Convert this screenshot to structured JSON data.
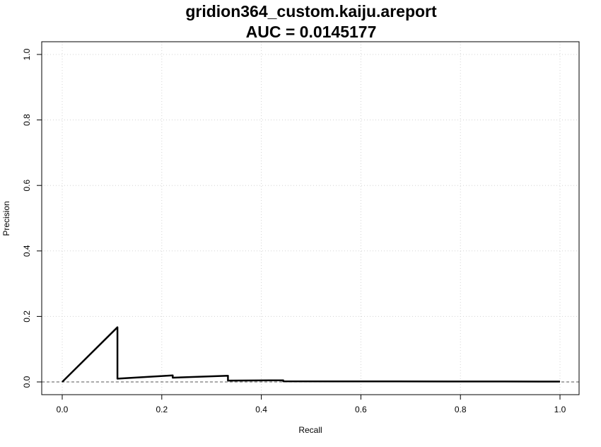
{
  "chart_data": {
    "type": "line",
    "title": "gridion364_custom.kaiju.areport",
    "subtitle": "AUC = 0.0145177",
    "xlabel": "Recall",
    "ylabel": "Precision",
    "xlim": [
      0,
      1
    ],
    "ylim": [
      0,
      1
    ],
    "xticks": [
      "0.0",
      "0.2",
      "0.4",
      "0.6",
      "0.8",
      "1.0"
    ],
    "yticks": [
      "0.0",
      "0.2",
      "0.4",
      "0.6",
      "0.8",
      "1.0"
    ],
    "grid": true,
    "baseline": 0.0,
    "series": [
      {
        "x": [
          0.0,
          0.111,
          0.111,
          0.222,
          0.222,
          0.333,
          0.333,
          0.444,
          0.444,
          0.556,
          0.667,
          0.778,
          0.889,
          1.0
        ],
        "y": [
          0.0,
          0.167,
          0.01,
          0.02,
          0.013,
          0.019,
          0.004,
          0.005,
          0.002,
          0.0018,
          0.0015,
          0.0013,
          0.0012,
          0.0011
        ]
      }
    ],
    "colors": {
      "line": "#000000",
      "grid": "#d3d3d3",
      "baseline": "#555555"
    }
  }
}
